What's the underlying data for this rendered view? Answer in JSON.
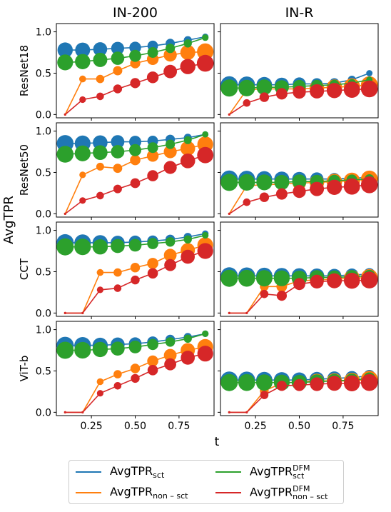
{
  "chart_data": {
    "type": "line",
    "ylabel": "AvgTPR",
    "xlabel": "t",
    "xlim": [
      0.05,
      0.95
    ],
    "ylim": [
      -0.04,
      1.1
    ],
    "x": [
      0.1,
      0.2,
      0.3,
      0.4,
      0.5,
      0.6,
      0.7,
      0.8,
      0.9
    ],
    "xticks": [
      "0.25",
      "0.50",
      "0.75"
    ],
    "xtick_values": [
      0.25,
      0.5,
      0.75
    ],
    "yticks": [
      "0.0",
      "0.5",
      "1.0"
    ],
    "ytick_values": [
      0.0,
      0.5,
      1.0
    ],
    "columns": [
      "IN-200",
      "IN-R"
    ],
    "rows": [
      "ResNet18",
      "ResNet50",
      "CCT",
      "ViT-b"
    ],
    "series_styles": [
      {
        "key": "sct",
        "color": "#1f77b4"
      },
      {
        "key": "non_sct",
        "color": "#ff7f0e"
      },
      {
        "key": "sct_dfm",
        "color": "#2ca02c"
      },
      {
        "key": "non_sct_dfm",
        "color": "#d62728"
      }
    ],
    "legend": [
      {
        "key": "sct",
        "base": "AvgTPR",
        "sub": "sct",
        "sup": ""
      },
      {
        "key": "sct_dfm",
        "base": "AvgTPR",
        "sub": "sct",
        "sup": "DFM"
      },
      {
        "key": "non_sct",
        "base": "AvgTPR",
        "sub": "non – sct",
        "sup": ""
      },
      {
        "key": "non_sct_dfm",
        "base": "AvgTPR",
        "sub": "non – sct",
        "sup": "DFM"
      }
    ],
    "panels": [
      {
        "row": "ResNet18",
        "column": "IN-200",
        "series": [
          {
            "key": "sct",
            "values": [
              0.78,
              0.78,
              0.79,
              0.8,
              0.81,
              0.83,
              0.86,
              0.9,
              0.94
            ],
            "sizes": [
              0.8,
              0.78,
              0.7,
              0.62,
              0.52,
              0.43,
              0.33,
              0.23,
              0.11
            ]
          },
          {
            "key": "non_sct",
            "values": [
              0.0,
              0.43,
              0.43,
              0.53,
              0.62,
              0.67,
              0.72,
              0.75,
              0.76
            ],
            "sizes": [
              0.0,
              0.15,
              0.25,
              0.33,
              0.4,
              0.52,
              0.63,
              0.78,
              0.9
            ]
          },
          {
            "key": "sct_dfm",
            "values": [
              0.63,
              0.64,
              0.66,
              0.68,
              0.71,
              0.75,
              0.8,
              0.86,
              0.93
            ],
            "sizes": [
              0.85,
              0.8,
              0.72,
              0.64,
              0.55,
              0.44,
              0.34,
              0.24,
              0.12
            ]
          },
          {
            "key": "non_sct_dfm",
            "values": [
              0.0,
              0.18,
              0.22,
              0.31,
              0.38,
              0.45,
              0.52,
              0.58,
              0.62
            ],
            "sizes": [
              0.0,
              0.12,
              0.2,
              0.3,
              0.4,
              0.52,
              0.65,
              0.8,
              0.92
            ]
          }
        ]
      },
      {
        "row": "ResNet18",
        "column": "IN-R",
        "series": [
          {
            "key": "sct",
            "values": [
              0.36,
              0.36,
              0.36,
              0.36,
              0.37,
              0.37,
              0.38,
              0.42,
              0.5
            ],
            "sizes": [
              0.95,
              0.9,
              0.82,
              0.72,
              0.62,
              0.5,
              0.38,
              0.24,
              0.1
            ]
          },
          {
            "key": "non_sct",
            "values": [
              0.0,
              0.3,
              0.31,
              0.31,
              0.31,
              0.32,
              0.33,
              0.34,
              0.36
            ],
            "sizes": [
              0.0,
              0.25,
              0.4,
              0.55,
              0.65,
              0.75,
              0.82,
              0.88,
              0.92
            ]
          },
          {
            "key": "sct_dfm",
            "values": [
              0.32,
              0.32,
              0.33,
              0.33,
              0.34,
              0.35,
              0.36,
              0.38,
              0.42
            ],
            "sizes": [
              0.95,
              0.9,
              0.82,
              0.72,
              0.62,
              0.5,
              0.38,
              0.24,
              0.1
            ]
          },
          {
            "key": "non_sct_dfm",
            "values": [
              0.0,
              0.14,
              0.21,
              0.25,
              0.27,
              0.28,
              0.29,
              0.3,
              0.31
            ],
            "sizes": [
              0.0,
              0.2,
              0.35,
              0.5,
              0.62,
              0.72,
              0.8,
              0.88,
              0.92
            ]
          }
        ]
      },
      {
        "row": "ResNet50",
        "column": "IN-200",
        "series": [
          {
            "key": "sct",
            "values": [
              0.85,
              0.85,
              0.86,
              0.87,
              0.87,
              0.88,
              0.9,
              0.92,
              0.96
            ],
            "sizes": [
              0.92,
              0.85,
              0.76,
              0.66,
              0.56,
              0.45,
              0.34,
              0.22,
              0.1
            ]
          },
          {
            "key": "non_sct",
            "values": [
              0.0,
              0.47,
              0.57,
              0.55,
              0.65,
              0.7,
              0.75,
              0.79,
              0.84
            ],
            "sizes": [
              0.0,
              0.12,
              0.22,
              0.32,
              0.42,
              0.52,
              0.62,
              0.75,
              0.85
            ]
          },
          {
            "key": "sct_dfm",
            "values": [
              0.72,
              0.73,
              0.74,
              0.75,
              0.77,
              0.8,
              0.84,
              0.89,
              0.96
            ],
            "sizes": [
              0.92,
              0.85,
              0.76,
              0.66,
              0.56,
              0.45,
              0.34,
              0.22,
              0.1
            ]
          },
          {
            "key": "non_sct_dfm",
            "values": [
              0.0,
              0.16,
              0.22,
              0.3,
              0.37,
              0.46,
              0.56,
              0.64,
              0.71
            ],
            "sizes": [
              0.0,
              0.12,
              0.2,
              0.28,
              0.38,
              0.48,
              0.62,
              0.75,
              0.88
            ]
          }
        ]
      },
      {
        "row": "ResNet50",
        "column": "IN-R",
        "series": [
          {
            "key": "sct",
            "values": [
              0.42,
              0.42,
              0.42,
              0.42,
              0.42,
              0.42,
              0.42,
              0.43,
              0.44
            ],
            "sizes": [
              0.95,
              0.9,
              0.84,
              0.78,
              0.72,
              0.64,
              0.55,
              0.45,
              0.35
            ]
          },
          {
            "key": "non_sct",
            "values": [
              0.0,
              0.34,
              0.35,
              0.36,
              0.37,
              0.38,
              0.39,
              0.4,
              0.42
            ],
            "sizes": [
              0.0,
              0.25,
              0.4,
              0.55,
              0.65,
              0.75,
              0.82,
              0.88,
              0.92
            ]
          },
          {
            "key": "sct_dfm",
            "values": [
              0.38,
              0.38,
              0.38,
              0.38,
              0.39,
              0.39,
              0.4,
              0.41,
              0.42
            ],
            "sizes": [
              0.95,
              0.9,
              0.84,
              0.78,
              0.72,
              0.64,
              0.55,
              0.45,
              0.35
            ]
          },
          {
            "key": "non_sct_dfm",
            "values": [
              0.0,
              0.14,
              0.2,
              0.24,
              0.27,
              0.3,
              0.32,
              0.33,
              0.35
            ],
            "sizes": [
              0.0,
              0.2,
              0.35,
              0.5,
              0.62,
              0.72,
              0.8,
              0.88,
              0.92
            ]
          }
        ]
      },
      {
        "row": "CCT",
        "column": "IN-200",
        "series": [
          {
            "key": "sct",
            "values": [
              0.85,
              0.85,
              0.85,
              0.85,
              0.86,
              0.87,
              0.89,
              0.92,
              0.96
            ],
            "sizes": [
              0.95,
              0.9,
              0.8,
              0.7,
              0.6,
              0.48,
              0.36,
              0.24,
              0.12
            ]
          },
          {
            "key": "non_sct",
            "values": [
              0.0,
              0.0,
              0.49,
              0.49,
              0.55,
              0.6,
              0.7,
              0.76,
              0.82
            ],
            "sizes": [
              0.0,
              0.0,
              0.15,
              0.25,
              0.35,
              0.48,
              0.6,
              0.72,
              0.85
            ]
          },
          {
            "key": "sct_dfm",
            "values": [
              0.8,
              0.8,
              0.8,
              0.81,
              0.82,
              0.84,
              0.86,
              0.89,
              0.94
            ],
            "sizes": [
              0.95,
              0.9,
              0.8,
              0.7,
              0.6,
              0.48,
              0.36,
              0.24,
              0.12
            ]
          },
          {
            "key": "non_sct_dfm",
            "values": [
              0.0,
              0.0,
              0.28,
              0.3,
              0.4,
              0.48,
              0.58,
              0.68,
              0.75
            ],
            "sizes": [
              0.0,
              0.0,
              0.12,
              0.2,
              0.3,
              0.42,
              0.55,
              0.7,
              0.85
            ]
          }
        ]
      },
      {
        "row": "CCT",
        "column": "IN-R",
        "series": [
          {
            "key": "sct",
            "values": [
              0.45,
              0.45,
              0.45,
              0.45,
              0.45,
              0.45,
              0.45,
              0.46,
              0.47
            ],
            "sizes": [
              0.95,
              0.92,
              0.88,
              0.84,
              0.8,
              0.75,
              0.7,
              0.62,
              0.55
            ]
          },
          {
            "key": "non_sct",
            "values": [
              0.0,
              0.0,
              0.32,
              0.32,
              0.39,
              0.4,
              0.41,
              0.42,
              0.43
            ],
            "sizes": [
              0.0,
              0.0,
              0.3,
              0.45,
              0.6,
              0.72,
              0.8,
              0.88,
              0.92
            ]
          },
          {
            "key": "sct_dfm",
            "values": [
              0.42,
              0.42,
              0.42,
              0.42,
              0.42,
              0.43,
              0.43,
              0.44,
              0.45
            ],
            "sizes": [
              0.95,
              0.92,
              0.88,
              0.84,
              0.8,
              0.75,
              0.7,
              0.62,
              0.55
            ]
          },
          {
            "key": "non_sct_dfm",
            "values": [
              0.0,
              0.0,
              0.23,
              0.21,
              0.35,
              0.38,
              0.39,
              0.39,
              0.4
            ],
            "sizes": [
              0.0,
              0.0,
              0.25,
              0.4,
              0.55,
              0.68,
              0.78,
              0.86,
              0.92
            ]
          }
        ]
      },
      {
        "row": "ViT-b",
        "column": "IN-200",
        "series": [
          {
            "key": "sct",
            "values": [
              0.81,
              0.81,
              0.81,
              0.82,
              0.83,
              0.85,
              0.88,
              0.91,
              0.95
            ],
            "sizes": [
              0.95,
              0.9,
              0.8,
              0.7,
              0.6,
              0.48,
              0.36,
              0.24,
              0.12
            ]
          },
          {
            "key": "non_sct",
            "values": [
              0.0,
              0.0,
              0.37,
              0.46,
              0.53,
              0.62,
              0.69,
              0.75,
              0.79
            ],
            "sizes": [
              0.0,
              0.0,
              0.15,
              0.25,
              0.35,
              0.48,
              0.6,
              0.72,
              0.85
            ]
          },
          {
            "key": "sct_dfm",
            "values": [
              0.75,
              0.75,
              0.76,
              0.77,
              0.79,
              0.82,
              0.85,
              0.89,
              0.95
            ],
            "sizes": [
              0.95,
              0.9,
              0.8,
              0.7,
              0.6,
              0.48,
              0.36,
              0.24,
              0.12
            ]
          },
          {
            "key": "non_sct_dfm",
            "values": [
              0.0,
              0.0,
              0.23,
              0.32,
              0.41,
              0.51,
              0.58,
              0.66,
              0.71
            ],
            "sizes": [
              0.0,
              0.0,
              0.12,
              0.2,
              0.3,
              0.42,
              0.55,
              0.7,
              0.85
            ]
          }
        ]
      },
      {
        "row": "ViT-b",
        "column": "IN-R",
        "series": [
          {
            "key": "sct",
            "values": [
              0.39,
              0.39,
              0.39,
              0.39,
              0.39,
              0.4,
              0.41,
              0.42,
              0.44
            ],
            "sizes": [
              0.95,
              0.92,
              0.88,
              0.84,
              0.8,
              0.75,
              0.7,
              0.62,
              0.55
            ]
          },
          {
            "key": "non_sct",
            "values": [
              0.0,
              0.0,
              0.26,
              0.35,
              0.37,
              0.38,
              0.38,
              0.38,
              0.4
            ],
            "sizes": [
              0.0,
              0.0,
              0.3,
              0.45,
              0.6,
              0.72,
              0.8,
              0.88,
              0.92
            ]
          },
          {
            "key": "sct_dfm",
            "values": [
              0.36,
              0.36,
              0.36,
              0.36,
              0.36,
              0.37,
              0.38,
              0.39,
              0.41
            ],
            "sizes": [
              0.95,
              0.92,
              0.88,
              0.84,
              0.8,
              0.75,
              0.7,
              0.62,
              0.55
            ]
          },
          {
            "key": "non_sct_dfm",
            "values": [
              0.0,
              0.0,
              0.21,
              0.32,
              0.33,
              0.34,
              0.35,
              0.35,
              0.36
            ],
            "sizes": [
              0.0,
              0.0,
              0.25,
              0.4,
              0.55,
              0.68,
              0.78,
              0.86,
              0.92
            ]
          }
        ]
      }
    ]
  }
}
